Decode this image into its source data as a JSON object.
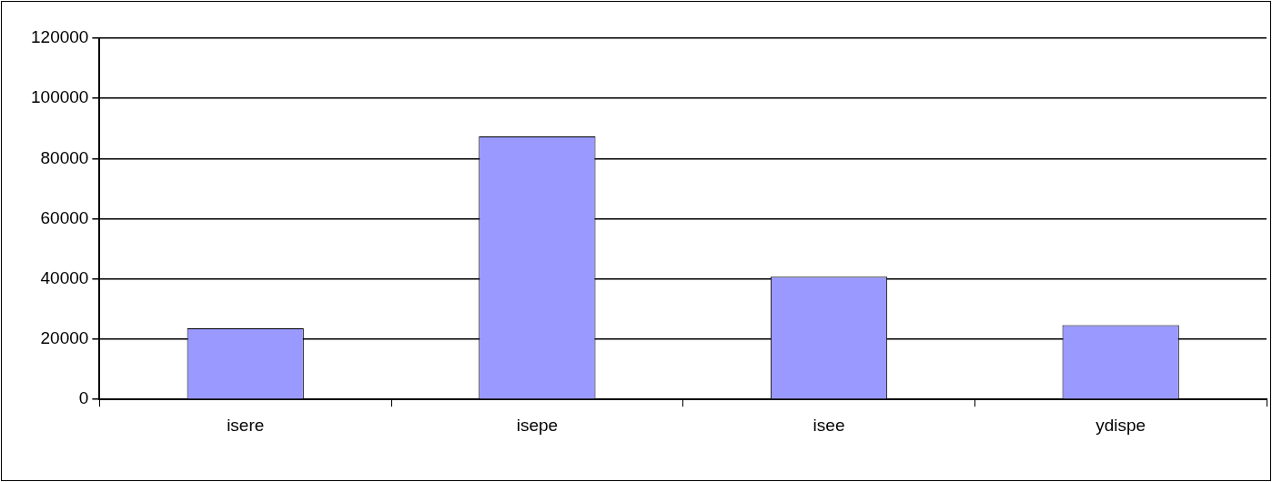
{
  "chart_data": {
    "type": "bar",
    "categories": [
      "isere",
      "isepe",
      "isee",
      "ydispe"
    ],
    "values": [
      23600,
      87400,
      40800,
      24700
    ],
    "color": "#9999ff",
    "ylim": [
      0,
      120000
    ],
    "yticks": [
      0,
      20000,
      40000,
      60000,
      80000,
      100000,
      120000
    ],
    "grid": "y",
    "legend": false
  }
}
